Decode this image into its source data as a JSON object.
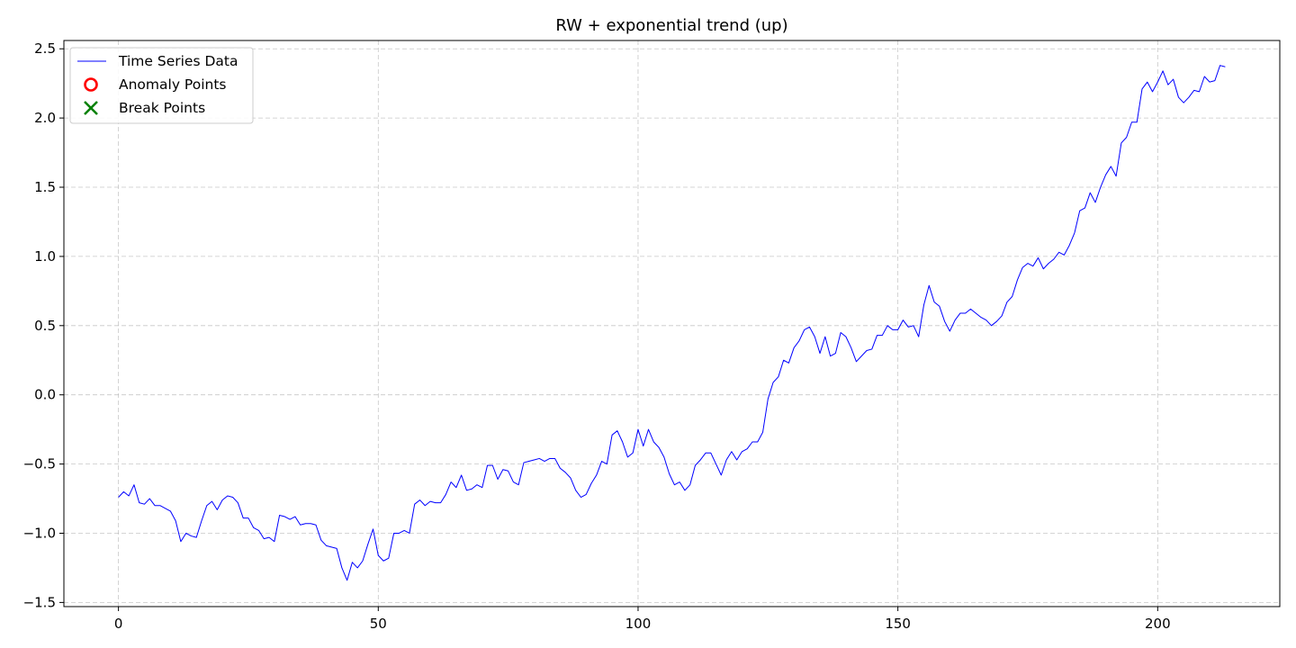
{
  "chart_data": {
    "type": "line",
    "title": "RW + exponential trend (up)",
    "xlabel": "",
    "ylabel": "",
    "xlim": [
      -10.5,
      223.5
    ],
    "ylim": [
      -1.53,
      2.56
    ],
    "x_ticks": [
      0,
      50,
      100,
      150,
      200
    ],
    "x_tick_labels": [
      "0",
      "50",
      "100",
      "150",
      "200"
    ],
    "y_ticks": [
      -1.5,
      -1.0,
      -0.5,
      0.0,
      0.5,
      1.0,
      1.5,
      2.0,
      2.5
    ],
    "y_tick_labels": [
      "−1.5",
      "−1.0",
      "−0.5",
      "0.0",
      "0.5",
      "1.0",
      "1.5",
      "2.0",
      "2.5"
    ],
    "grid": true,
    "legend_position": "top-left",
    "legend": [
      {
        "label": "Time Series Data",
        "marker": "line",
        "color": "#0000ff"
      },
      {
        "label": "Anomaly Points",
        "marker": "circle",
        "color": "#ff0000"
      },
      {
        "label": "Break Points",
        "marker": "x",
        "color": "#008000"
      }
    ],
    "series": [
      {
        "name": "Time Series Data",
        "color": "#0000ff",
        "x_start": 0,
        "x_step": 1,
        "values": [
          -0.74,
          -0.7,
          -0.73,
          -0.65,
          -0.78,
          -0.79,
          -0.75,
          -0.8,
          -0.8,
          -0.82,
          -0.84,
          -0.91,
          -1.06,
          -1.0,
          -1.02,
          -1.03,
          -0.91,
          -0.8,
          -0.77,
          -0.83,
          -0.76,
          -0.73,
          -0.74,
          -0.78,
          -0.89,
          -0.89,
          -0.96,
          -0.98,
          -1.04,
          -1.03,
          -1.06,
          -0.87,
          -0.88,
          -0.9,
          -0.88,
          -0.94,
          -0.93,
          -0.93,
          -0.94,
          -1.05,
          -1.09,
          -1.1,
          -1.11,
          -1.25,
          -1.34,
          -1.21,
          -1.25,
          -1.2,
          -1.08,
          -0.97,
          -1.16,
          -1.2,
          -1.18,
          -1.0,
          -1.0,
          -0.98,
          -1.0,
          -0.79,
          -0.76,
          -0.8,
          -0.77,
          -0.78,
          -0.78,
          -0.72,
          -0.63,
          -0.67,
          -0.58,
          -0.69,
          -0.68,
          -0.65,
          -0.67,
          -0.51,
          -0.51,
          -0.61,
          -0.54,
          -0.55,
          -0.63,
          -0.65,
          -0.49,
          -0.48,
          -0.47,
          -0.46,
          -0.48,
          -0.46,
          -0.46,
          -0.53,
          -0.56,
          -0.6,
          -0.69,
          -0.74,
          -0.72,
          -0.64,
          -0.58,
          -0.48,
          -0.5,
          -0.29,
          -0.26,
          -0.34,
          -0.45,
          -0.42,
          -0.25,
          -0.37,
          -0.25,
          -0.34,
          -0.38,
          -0.45,
          -0.57,
          -0.65,
          -0.63,
          -0.69,
          -0.65,
          -0.51,
          -0.47,
          -0.42,
          -0.42,
          -0.5,
          -0.58,
          -0.47,
          -0.41,
          -0.47,
          -0.41,
          -0.39,
          -0.34,
          -0.34,
          -0.27,
          -0.03,
          0.09,
          0.13,
          0.25,
          0.23,
          0.34,
          0.39,
          0.47,
          0.49,
          0.42,
          0.3,
          0.42,
          0.28,
          0.3,
          0.45,
          0.42,
          0.34,
          0.24,
          0.28,
          0.32,
          0.33,
          0.43,
          0.43,
          0.5,
          0.47,
          0.47,
          0.54,
          0.49,
          0.5,
          0.42,
          0.65,
          0.79,
          0.67,
          0.64,
          0.53,
          0.46,
          0.54,
          0.59,
          0.59,
          0.62,
          0.59,
          0.56,
          0.54,
          0.5,
          0.53,
          0.57,
          0.67,
          0.71,
          0.83,
          0.92,
          0.95,
          0.93,
          0.99,
          0.91,
          0.95,
          0.98,
          1.03,
          1.01,
          1.08,
          1.17,
          1.33,
          1.35,
          1.46,
          1.39,
          1.5,
          1.59,
          1.65,
          1.58,
          1.82,
          1.86,
          1.97,
          1.97,
          2.21,
          2.26,
          2.19,
          2.26,
          2.34,
          2.24,
          2.28,
          2.15,
          2.11,
          2.15,
          2.2,
          2.19,
          2.3,
          2.26,
          2.27,
          2.38,
          2.37
        ]
      }
    ]
  }
}
